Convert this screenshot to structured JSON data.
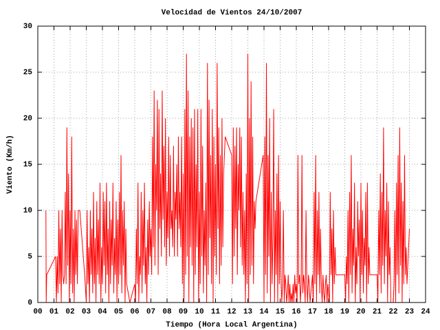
{
  "chart_data": {
    "type": "line",
    "title": "Velocidad de Vientos 24/10/2007",
    "x_label": "Tiempo (Hora Local Argentina)",
    "y_label": "Viento (Km/h)",
    "xlim": [
      0,
      24
    ],
    "ylim": [
      0,
      30
    ],
    "xticks": [
      {
        "value": 0,
        "label": "00"
      },
      {
        "value": 1,
        "label": "01"
      },
      {
        "value": 2,
        "label": "02"
      },
      {
        "value": 3,
        "label": "03"
      },
      {
        "value": 4,
        "label": "04"
      },
      {
        "value": 5,
        "label": "05"
      },
      {
        "value": 6,
        "label": "06"
      },
      {
        "value": 7,
        "label": "07"
      },
      {
        "value": 8,
        "label": "08"
      },
      {
        "value": 9,
        "label": "09"
      },
      10,
      11,
      12,
      13,
      14,
      15,
      16,
      17,
      18,
      19,
      20,
      21,
      22,
      23,
      24
    ],
    "yticks": [
      0,
      5,
      10,
      15,
      20,
      25,
      30
    ],
    "grid": true,
    "x": [
      0.5,
      0.52,
      0.55,
      1.1,
      1.15,
      1.2,
      1.25,
      1.3,
      1.35,
      1.4,
      1.45,
      1.5,
      1.55,
      1.6,
      1.65,
      1.7,
      1.75,
      1.8,
      1.85,
      1.9,
      1.95,
      2,
      2.05,
      2.1,
      2.15,
      2.2,
      2.25,
      2.3,
      2.35,
      2.4,
      2.45,
      2.5,
      2.6,
      2.9,
      3,
      3.05,
      3.1,
      3.15,
      3.2,
      3.25,
      3.3,
      3.35,
      3.4,
      3.45,
      3.5,
      3.55,
      3.6,
      3.65,
      3.7,
      3.75,
      3.8,
      3.85,
      3.9,
      3.95,
      4,
      4.05,
      4.1,
      4.15,
      4.2,
      4.25,
      4.3,
      4.35,
      4.4,
      4.45,
      4.5,
      4.55,
      4.6,
      4.65,
      4.7,
      4.75,
      4.8,
      4.85,
      4.9,
      4.95,
      5,
      5.05,
      5.1,
      5.15,
      5.2,
      5.25,
      5.3,
      5.35,
      5.4,
      5.45,
      5.5,
      5.7,
      6,
      6.05,
      6.1,
      6.15,
      6.2,
      6.25,
      6.3,
      6.35,
      6.4,
      6.45,
      6.5,
      6.55,
      6.6,
      6.65,
      6.7,
      6.75,
      6.8,
      6.85,
      6.9,
      6.95,
      7,
      7.05,
      7.1,
      7.15,
      7.2,
      7.25,
      7.3,
      7.35,
      7.4,
      7.45,
      7.5,
      7.55,
      7.6,
      7.65,
      7.7,
      7.75,
      7.8,
      7.85,
      7.9,
      7.95,
      8,
      8.05,
      8.1,
      8.15,
      8.2,
      8.25,
      8.3,
      8.35,
      8.4,
      8.45,
      8.5,
      8.55,
      8.6,
      8.65,
      8.7,
      8.75,
      8.8,
      8.85,
      8.9,
      8.95,
      9,
      9.05,
      9.1,
      9.15,
      9.2,
      9.25,
      9.3,
      9.35,
      9.4,
      9.45,
      9.5,
      9.55,
      9.6,
      9.65,
      9.7,
      9.75,
      9.8,
      9.85,
      9.9,
      9.95,
      10,
      10.05,
      10.1,
      10.15,
      10.2,
      10.25,
      10.3,
      10.35,
      10.4,
      10.45,
      10.5,
      10.55,
      10.6,
      10.65,
      10.7,
      10.75,
      10.8,
      10.85,
      10.9,
      10.95,
      11,
      11.05,
      11.1,
      11.15,
      11.2,
      11.25,
      11.3,
      11.35,
      11.4,
      11.45,
      11.5,
      11.6,
      12,
      12.05,
      12.1,
      12.15,
      12.2,
      12.25,
      12.3,
      12.35,
      12.4,
      12.45,
      12.5,
      12.55,
      12.6,
      12.65,
      12.7,
      12.75,
      12.8,
      12.85,
      12.9,
      12.95,
      13,
      13.05,
      13.1,
      13.15,
      13.2,
      13.25,
      13.3,
      13.35,
      13.4,
      13.45,
      13.5,
      13.95,
      14,
      14.05,
      14.1,
      14.15,
      14.2,
      14.25,
      14.3,
      14.35,
      14.4,
      14.45,
      14.5,
      14.55,
      14.6,
      14.65,
      14.7,
      14.75,
      14.8,
      14.85,
      14.9,
      14.95,
      15,
      15.05,
      15.1,
      15.15,
      15.2,
      15.25,
      15.3,
      15.35,
      15.4,
      15.45,
      15.5,
      15.55,
      15.6,
      15.65,
      15.7,
      15.75,
      15.8,
      15.85,
      15.9,
      15.95,
      16,
      16.05,
      16.1,
      16.15,
      16.2,
      16.25,
      16.3,
      16.35,
      16.4,
      16.45,
      16.5,
      16.55,
      16.6,
      16.65,
      16.7,
      16.75,
      16.8,
      16.85,
      16.9,
      16.95,
      17,
      17.05,
      17.1,
      17.15,
      17.2,
      17.25,
      17.3,
      17.35,
      17.4,
      17.45,
      17.5,
      17.55,
      17.6,
      17.65,
      17.7,
      17.75,
      17.8,
      17.85,
      17.9,
      17.95,
      18,
      18.05,
      18.1,
      18.15,
      18.2,
      18.25,
      18.3,
      18.35,
      18.4,
      18.45,
      18.5,
      19,
      19.05,
      19.1,
      19.15,
      19.2,
      19.25,
      19.3,
      19.35,
      19.4,
      19.45,
      19.5,
      19.55,
      19.6,
      19.65,
      19.7,
      19.75,
      19.8,
      19.85,
      19.9,
      19.95,
      20,
      20.05,
      20.1,
      20.15,
      20.2,
      20.25,
      20.3,
      20.35,
      20.4,
      20.45,
      20.5,
      20.55,
      21,
      21.05,
      21.1,
      21.15,
      21.2,
      21.25,
      21.3,
      21.35,
      21.4,
      21.45,
      21.5,
      21.55,
      21.6,
      21.65,
      21.7,
      21.75,
      21.8,
      21.85,
      22,
      22.05,
      22.1,
      22.15,
      22.2,
      22.25,
      22.3,
      22.35,
      22.4,
      22.45,
      22.5,
      22.55,
      22.6,
      22.65,
      22.7,
      22.75,
      22.8,
      22.85,
      23
    ],
    "series": [
      {
        "color": "#ff0000",
        "values": [
          10,
          0,
          3,
          5,
          0,
          5,
          1,
          10,
          2,
          8,
          0,
          10,
          3,
          2,
          3,
          12,
          2,
          19,
          4,
          14,
          0,
          10,
          2,
          18,
          1,
          8,
          0,
          10,
          3,
          9,
          2,
          10,
          10,
          3,
          0,
          10,
          2,
          6,
          0,
          10,
          3,
          8,
          1,
          12,
          2,
          7,
          0,
          11,
          3,
          9,
          2,
          13,
          0,
          6,
          2,
          12,
          4,
          11,
          1,
          13,
          3,
          8,
          0,
          11,
          2,
          9,
          4,
          13,
          1,
          7,
          3,
          11,
          0,
          9,
          2,
          12,
          3,
          16,
          1,
          10,
          4,
          11,
          0,
          8,
          2,
          0,
          2,
          0,
          8,
          2,
          13,
          0,
          5,
          3,
          12,
          1,
          10,
          4,
          13,
          2,
          6,
          0,
          9,
          3,
          11,
          5,
          8,
          3,
          18,
          6,
          23,
          4,
          15,
          10,
          22,
          3,
          21,
          8,
          14,
          5,
          23,
          9,
          17,
          6,
          20,
          4,
          12,
          7,
          18,
          5,
          16,
          8,
          10,
          6,
          17,
          5,
          12,
          9,
          15,
          5,
          18,
          8,
          12,
          6,
          18,
          2,
          14,
          0,
          21,
          3,
          27,
          5,
          23,
          0,
          18,
          6,
          20,
          4,
          19,
          0,
          21,
          3,
          15,
          6,
          21,
          0,
          12,
          2,
          21,
          5,
          17,
          1,
          10,
          4,
          13,
          0,
          26,
          3,
          22,
          7,
          16,
          2,
          21,
          0,
          18,
          5,
          15,
          3,
          26,
          8,
          19,
          2,
          16,
          4,
          20,
          6,
          14,
          18,
          16,
          2,
          19,
          5,
          17,
          8,
          19,
          3,
          15,
          10,
          19,
          6,
          18,
          4,
          12,
          3,
          10,
          0,
          14,
          2,
          27,
          0,
          20,
          3,
          24,
          4,
          18,
          2,
          11,
          8,
          11,
          16,
          0,
          18,
          3,
          26,
          1,
          16,
          5,
          20,
          0,
          12,
          2,
          7,
          21,
          0,
          10,
          3,
          14,
          0,
          16,
          2,
          11,
          3,
          0,
          2,
          10,
          0,
          3,
          2,
          0,
          1,
          3,
          0,
          2,
          0,
          1,
          0,
          2,
          0,
          3,
          1,
          2,
          0,
          16,
          2,
          3,
          0,
          2,
          16,
          1,
          3,
          2,
          0,
          10,
          2,
          0,
          3,
          2,
          0,
          1,
          2,
          3,
          0,
          12,
          2,
          16,
          0,
          10,
          3,
          12,
          1,
          8,
          2,
          0,
          3,
          1,
          0,
          2,
          3,
          0,
          2,
          1,
          0,
          12,
          3,
          8,
          0,
          10,
          2,
          6,
          3,
          3,
          3,
          0,
          5,
          2,
          10,
          0,
          12,
          3,
          16,
          1,
          8,
          4,
          13,
          0,
          6,
          2,
          11,
          5,
          9,
          0,
          13,
          3,
          10,
          1,
          7,
          4,
          12,
          0,
          13,
          2,
          6,
          3,
          3,
          0,
          10,
          3,
          14,
          1,
          12,
          4,
          19,
          2,
          10,
          5,
          13,
          0,
          11,
          3,
          6,
          0,
          0,
          2,
          10,
          0,
          13,
          3,
          16,
          1,
          19,
          4,
          13,
          0,
          11,
          2,
          16,
          3,
          6,
          2,
          8
        ]
      }
    ]
  }
}
